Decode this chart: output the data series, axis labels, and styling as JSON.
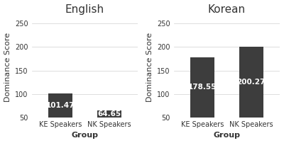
{
  "panels": [
    {
      "title": "English",
      "categories": [
        "KE Speakers",
        "NK Speakers"
      ],
      "values": [
        101.47,
        64.65
      ],
      "labels": [
        "101.47",
        "64.65"
      ],
      "xlabel": "Group",
      "ylabel": "Dominance Score"
    },
    {
      "title": "Korean",
      "categories": [
        "KE Speakers",
        "NK Speakers"
      ],
      "values": [
        178.55,
        200.27
      ],
      "labels": [
        "178.55",
        "200.27"
      ],
      "xlabel": "Group",
      "ylabel": "Dominance Score"
    }
  ],
  "bar_color": "#3d3d3d",
  "label_color": "#ffffff",
  "background_color": "#ffffff",
  "bar_bottom": 50,
  "ylim": [
    50,
    265
  ],
  "yticks": [
    50,
    100,
    150,
    200,
    250
  ],
  "bar_width": 0.5,
  "title_fontsize": 11,
  "axis_label_fontsize": 8,
  "tick_label_fontsize": 7,
  "value_label_fontsize": 7.5
}
